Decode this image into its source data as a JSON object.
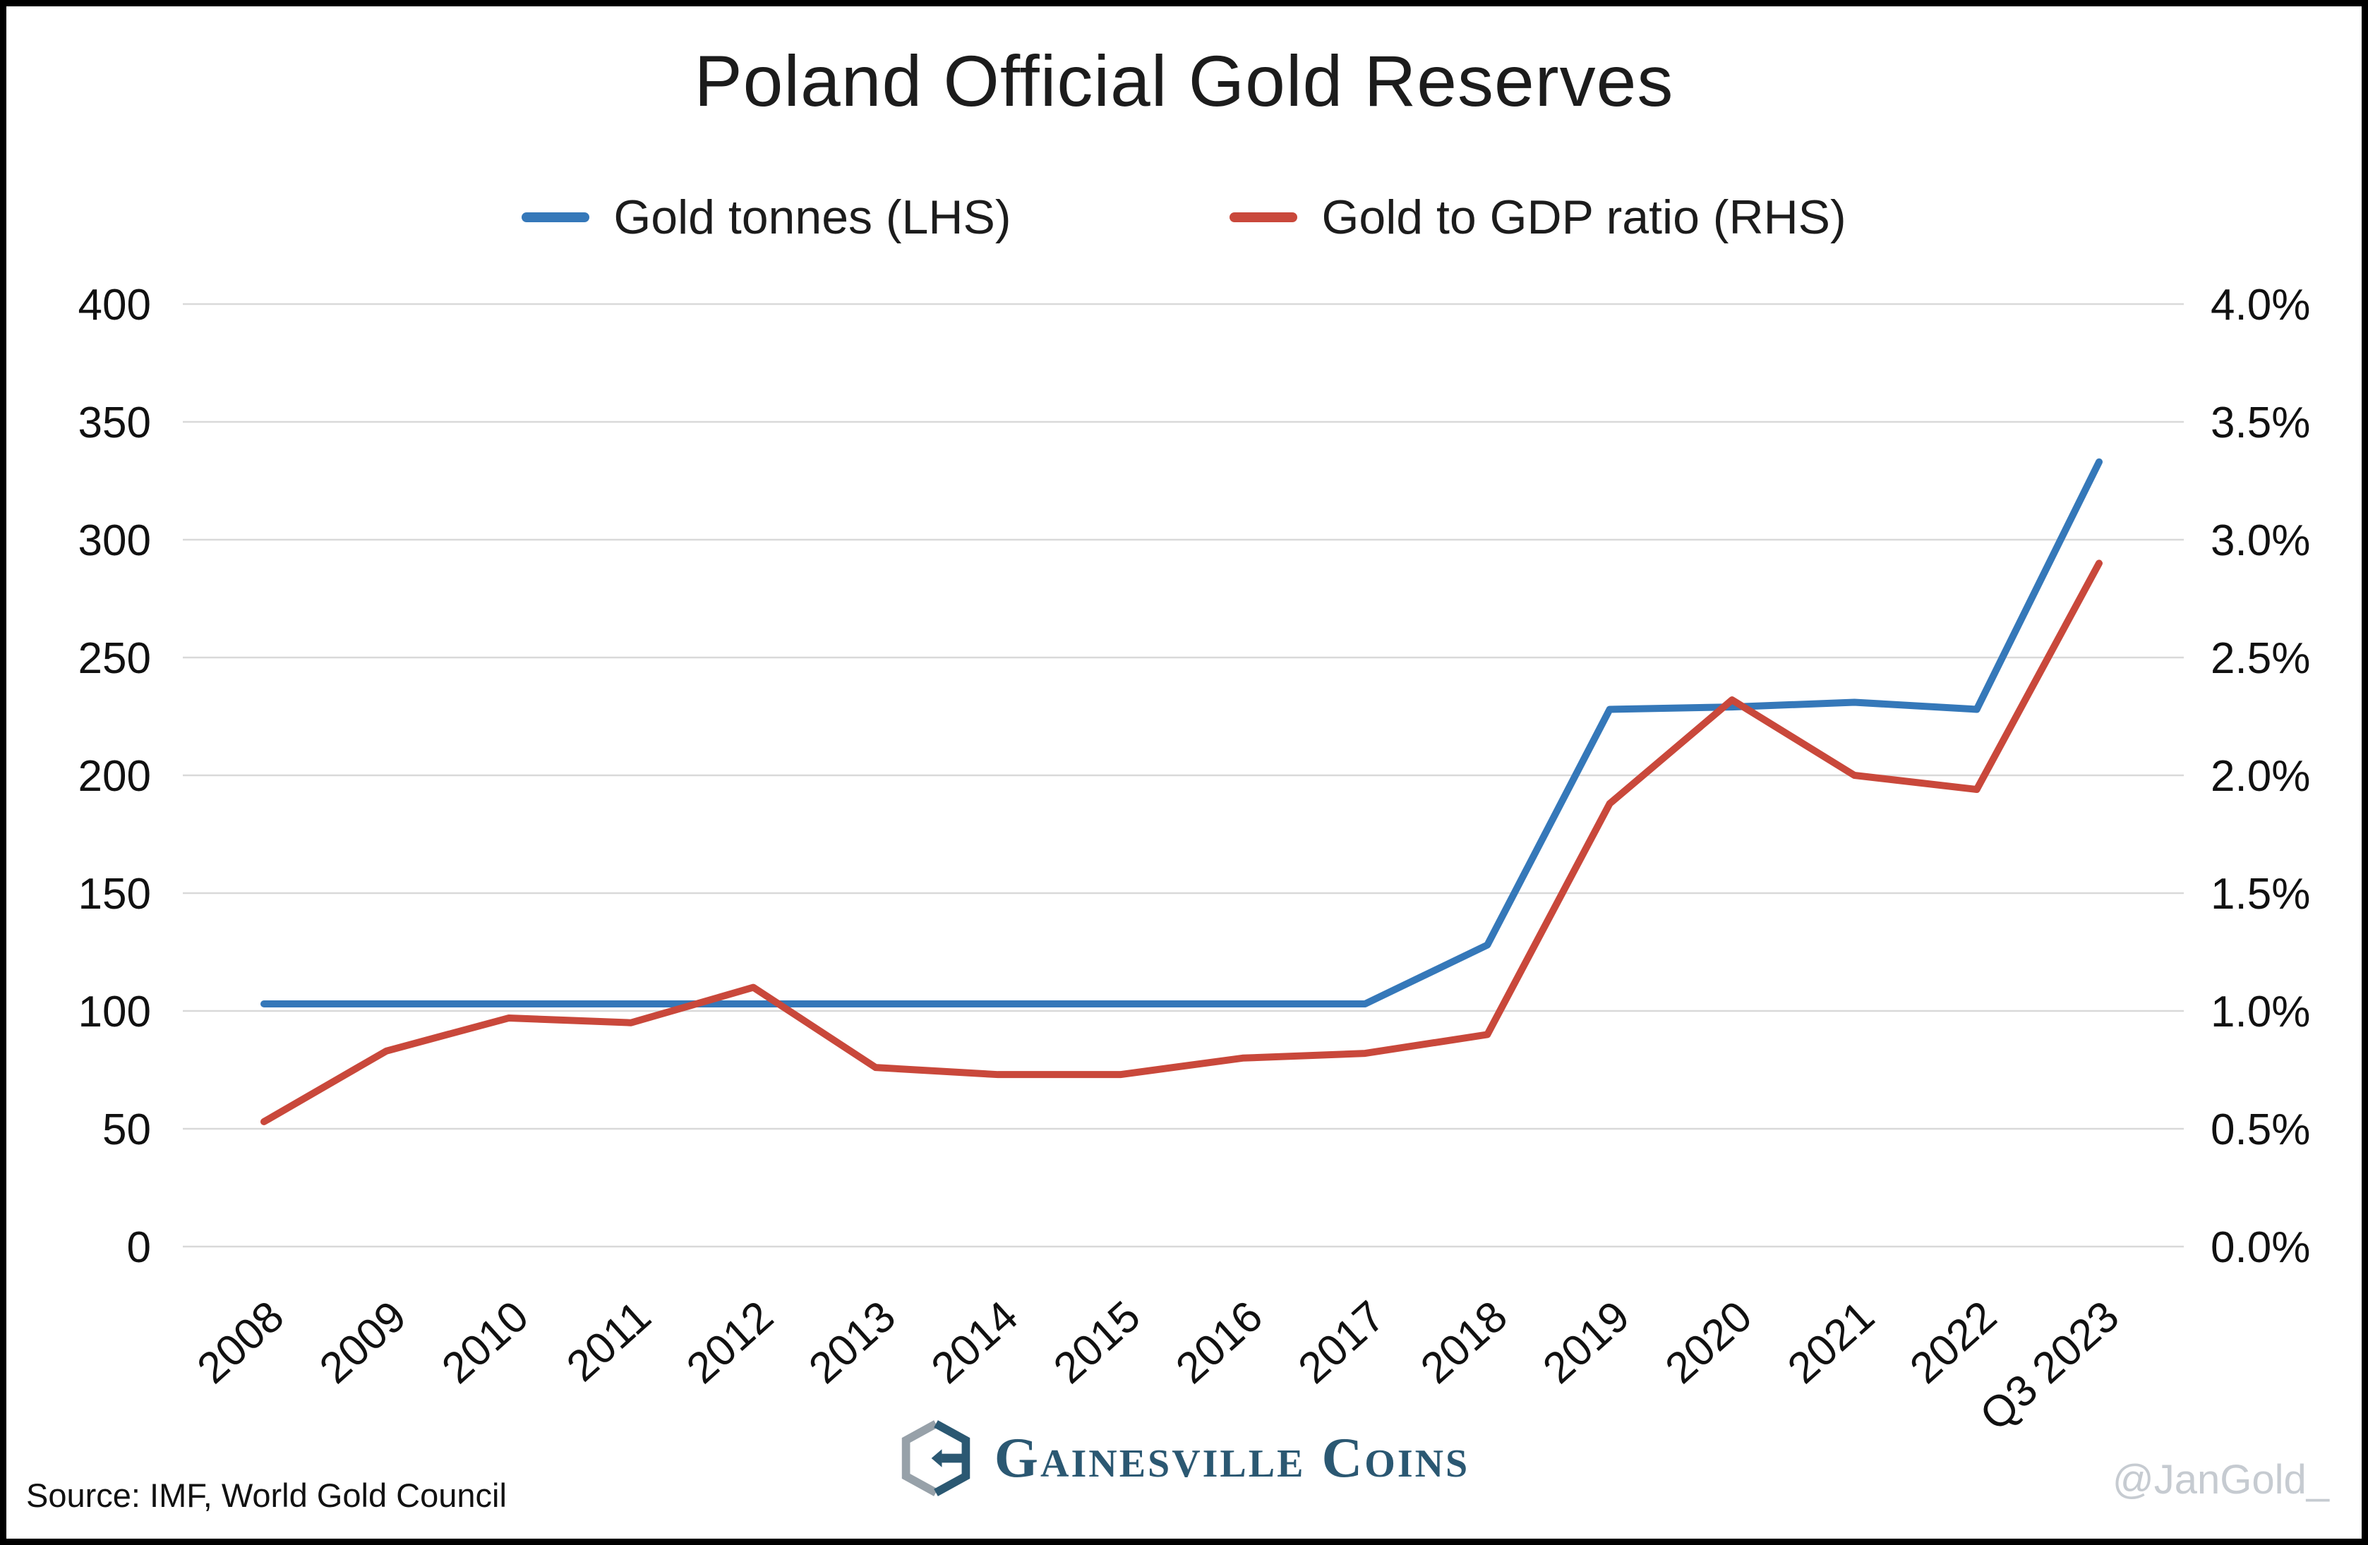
{
  "page": {
    "title": "Poland Official Gold Reserves",
    "source": "Source: IMF, World Gold Council",
    "handle": "@JanGold_",
    "brand": "Gainesville Coins"
  },
  "chart_data": {
    "type": "line",
    "title": "Poland Official Gold Reserves",
    "grid": true,
    "legend_position": "top",
    "categories": [
      "2008",
      "2009",
      "2010",
      "2011",
      "2012",
      "2013",
      "2014",
      "2015",
      "2016",
      "2017",
      "2018",
      "2019",
      "2020",
      "2021",
      "2022",
      "Q3 2023"
    ],
    "series": [
      {
        "name": "Gold tonnes (LHS)",
        "axis": "left",
        "color": "#3578b9",
        "values": [
          103,
          103,
          103,
          103,
          103,
          103,
          103,
          103,
          103,
          103,
          128,
          228,
          229,
          231,
          228,
          333
        ]
      },
      {
        "name": "Gold to GDP ratio (RHS)",
        "axis": "right",
        "color": "#c9483b",
        "values": [
          0.53,
          0.83,
          0.97,
          0.95,
          1.1,
          0.76,
          0.73,
          0.73,
          0.8,
          0.82,
          0.9,
          1.88,
          2.32,
          2.0,
          1.94,
          2.9
        ]
      }
    ],
    "left_axis": {
      "min": 0,
      "max": 400,
      "step": 50,
      "labels": [
        "0",
        "50",
        "100",
        "150",
        "200",
        "250",
        "300",
        "350",
        "400"
      ]
    },
    "right_axis": {
      "min": 0,
      "max": 4,
      "step": 0.5,
      "labels": [
        "0.0%",
        "0.5%",
        "1.0%",
        "1.5%",
        "2.0%",
        "2.5%",
        "3.0%",
        "3.5%",
        "4.0%"
      ]
    }
  }
}
